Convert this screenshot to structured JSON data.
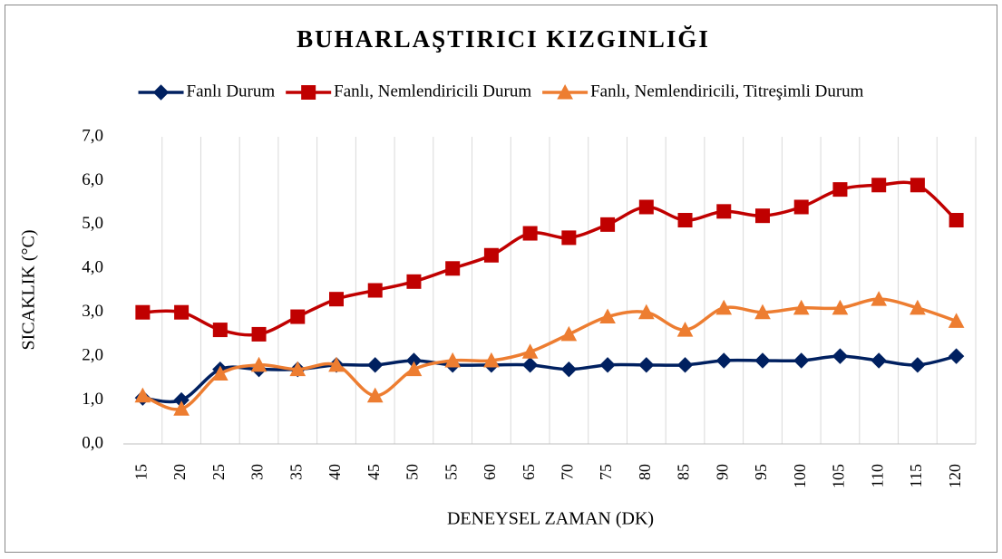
{
  "chart_data": {
    "type": "line",
    "title": "BUHARLAŞTIRICI KIZGINLIĞI",
    "xlabel": "DENEYSEL ZAMAN (DK)",
    "ylabel": "SICAKLIK (°C)",
    "categories": [
      "15",
      "20",
      "25",
      "30",
      "35",
      "40",
      "45",
      "50",
      "55",
      "60",
      "65",
      "70",
      "75",
      "80",
      "85",
      "90",
      "95",
      "100",
      "105",
      "110",
      "115",
      "120"
    ],
    "series": [
      {
        "name": "Fanlı Durum",
        "color": "#002060",
        "marker": "diamond",
        "values": [
          1.05,
          1.0,
          1.7,
          1.7,
          1.7,
          1.8,
          1.8,
          1.9,
          1.8,
          1.8,
          1.8,
          1.7,
          1.8,
          1.8,
          1.8,
          1.9,
          1.9,
          1.9,
          2.0,
          1.9,
          1.8,
          2.0
        ]
      },
      {
        "name": "Fanlı, Nemlendiricili Durum",
        "color": "#c00000",
        "marker": "square",
        "values": [
          3.0,
          3.0,
          2.6,
          2.5,
          2.9,
          3.3,
          3.5,
          3.7,
          4.0,
          4.3,
          4.8,
          4.7,
          5.0,
          5.4,
          5.1,
          5.3,
          5.2,
          5.4,
          5.8,
          5.9,
          5.9,
          5.1
        ]
      },
      {
        "name": "Fanlı, Nemlendiricili, Titreşimli Durum",
        "color": "#ed7d31",
        "marker": "triangle",
        "values": [
          1.1,
          0.8,
          1.6,
          1.8,
          1.7,
          1.8,
          1.1,
          1.7,
          1.9,
          1.9,
          2.1,
          2.5,
          2.9,
          3.0,
          2.6,
          3.1,
          3.0,
          3.1,
          3.1,
          3.3,
          3.1,
          2.8
        ]
      }
    ],
    "ylim": [
      0,
      7
    ],
    "yticks": [
      {
        "value": 0,
        "label": "0,0"
      },
      {
        "value": 1,
        "label": "1,0"
      },
      {
        "value": 2,
        "label": "2,0"
      },
      {
        "value": 3,
        "label": "3,0"
      },
      {
        "value": 4,
        "label": "4,0"
      },
      {
        "value": 5,
        "label": "5,0"
      },
      {
        "value": 6,
        "label": "6,0"
      },
      {
        "value": 7,
        "label": "7,0"
      }
    ],
    "grid": true,
    "legend": "top"
  }
}
